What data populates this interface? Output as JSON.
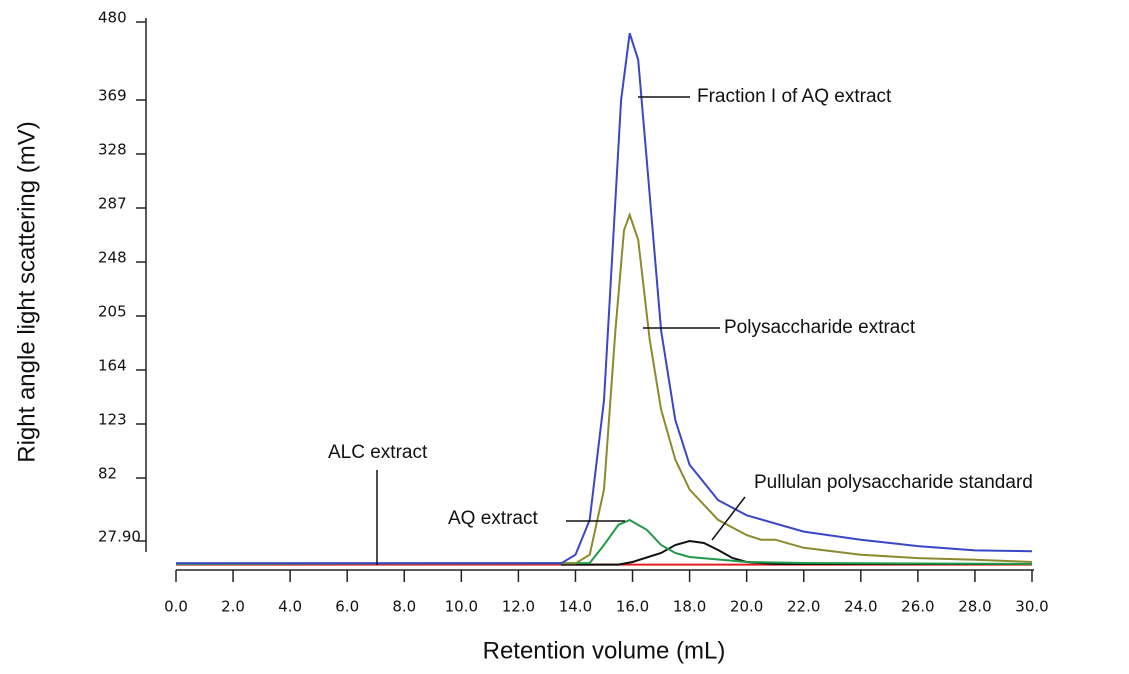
{
  "chart_data": {
    "type": "line",
    "x_label": "Retention volume (mL)",
    "y_label": "Right angle light scattering (mV)",
    "xlim": [
      0,
      30
    ],
    "xticks": [
      {
        "value": 0,
        "label": "0.0"
      },
      {
        "value": 2,
        "label": "2.0"
      },
      {
        "value": 4,
        "label": "4.0"
      },
      {
        "value": 6,
        "label": "6.0"
      },
      {
        "value": 8,
        "label": "8.0"
      },
      {
        "value": 10,
        "label": "10.0"
      },
      {
        "value": 12,
        "label": "12.0"
      },
      {
        "value": 14,
        "label": "14.0"
      },
      {
        "value": 16,
        "label": "16.0"
      },
      {
        "value": 18,
        "label": "18.0"
      },
      {
        "value": 20,
        "label": "20.0"
      },
      {
        "value": 22,
        "label": "22.0"
      },
      {
        "value": 24,
        "label": "24.0"
      },
      {
        "value": 26,
        "label": "26.0"
      },
      {
        "value": 28,
        "label": "28.0"
      },
      {
        "value": 30,
        "label": "30.0"
      }
    ],
    "ylim": [
      0,
      480
    ],
    "yticks": [
      {
        "value": 27.9,
        "label": "27.90"
      },
      82,
      123,
      164,
      205,
      248,
      287,
      328,
      369,
      480
    ],
    "series": [
      {
        "name": "Fraction I of AQ extract",
        "color": "#3a46c8",
        "x": [
          0,
          13.5,
          14,
          14.5,
          15,
          15.3,
          15.6,
          15.9,
          16.2,
          16.5,
          17,
          17.5,
          18,
          19,
          20,
          22,
          24,
          26,
          28,
          30
        ],
        "values": [
          2,
          2,
          12,
          46,
          141,
          257,
          369,
          464,
          426,
          323,
          194,
          126,
          92,
          63,
          50,
          36,
          29,
          22,
          17,
          16
        ]
      },
      {
        "name": "Polysaccharide extract",
        "color": "#8c8a2e",
        "x": [
          0,
          14,
          14.5,
          15,
          15.4,
          15.7,
          15.9,
          16.2,
          16.6,
          17,
          17.5,
          18,
          19,
          20,
          20.5,
          21,
          22,
          24,
          26,
          28,
          30
        ],
        "values": [
          2,
          2,
          12,
          72,
          194,
          271,
          282,
          264,
          187,
          134,
          96,
          72,
          46,
          33,
          29,
          29,
          20,
          12,
          8,
          6,
          3.5
        ]
      },
      {
        "name": "AQ extract",
        "color": "#23994a",
        "x": [
          0,
          14.5,
          15,
          15.5,
          15.9,
          16.5,
          17,
          17.5,
          18,
          20,
          22,
          30
        ],
        "values": [
          1,
          2.3,
          23.3,
          41.7,
          45.9,
          37.5,
          23.3,
          14,
          9.3,
          3.5,
          2.3,
          1.2
        ]
      },
      {
        "name": "Pullulan polysaccharide standard",
        "color": "#111111",
        "x": [
          13.5,
          15.5,
          16,
          17,
          17.5,
          18,
          18.5,
          19,
          19.5,
          20,
          21,
          30
        ],
        "values": [
          0.5,
          0.5,
          3.5,
          14,
          23.3,
          27.9,
          25.6,
          17.4,
          8.1,
          3.5,
          1.2,
          1.2
        ]
      },
      {
        "name": "ALC extract",
        "color": "#e02020",
        "x": [
          0,
          15,
          30
        ],
        "values": [
          0.5,
          0.5,
          0.5
        ]
      }
    ]
  }
}
